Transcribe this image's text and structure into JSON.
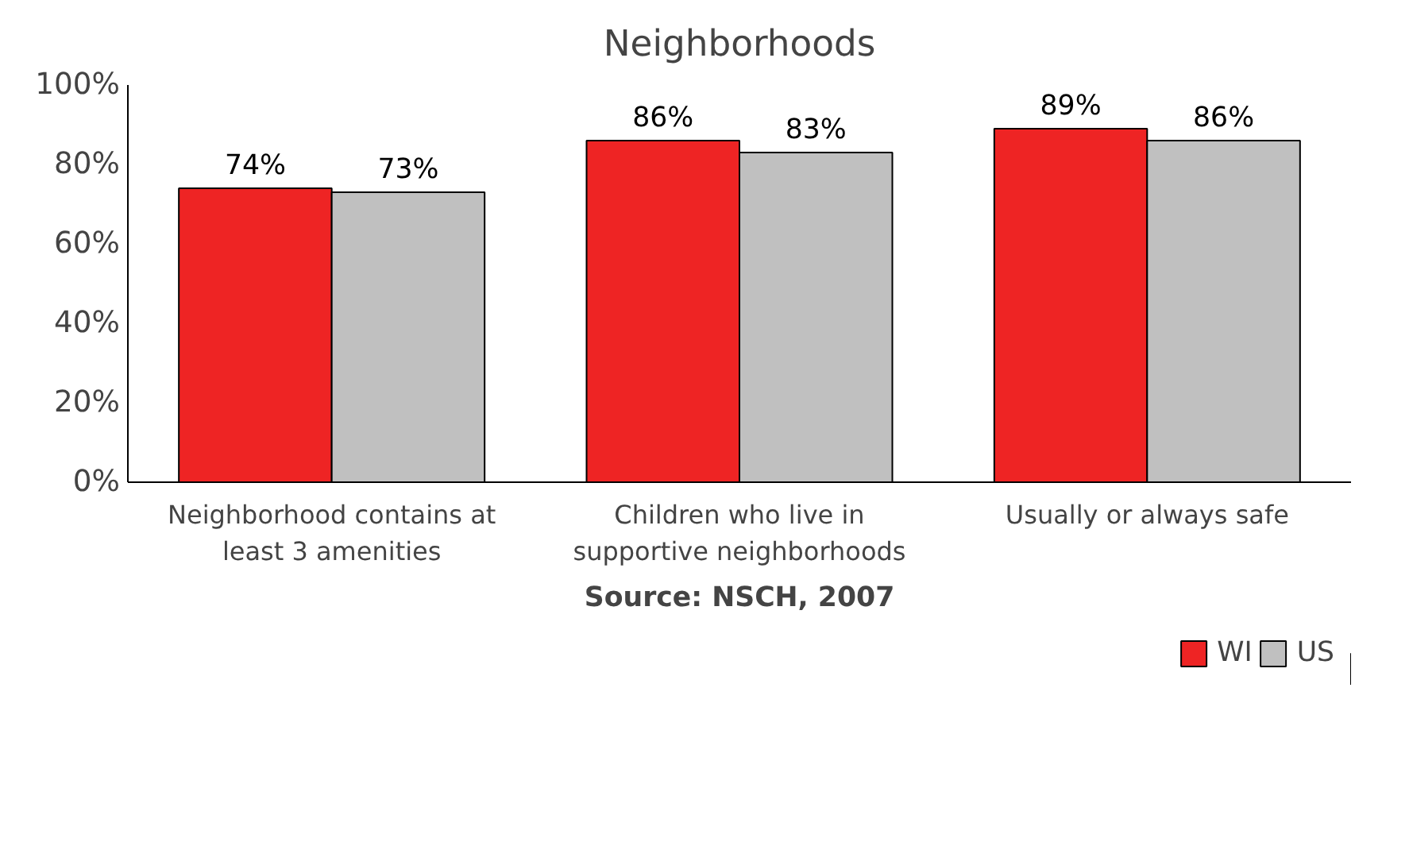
{
  "chart_data": {
    "type": "bar",
    "title": "Neighborhoods",
    "categories": [
      "Neighborhood contains at least 3 amenities",
      "Children who live in supportive neighborhoods",
      "Usually or always safe"
    ],
    "series": [
      {
        "name": "WI",
        "color": "#ee2424",
        "values": [
          74,
          86,
          89
        ],
        "value_labels": [
          "74%",
          "86%",
          "89%"
        ]
      },
      {
        "name": "US",
        "color": "#c0c0c0",
        "values": [
          73,
          83,
          86
        ],
        "value_labels": [
          "73%",
          "83%",
          "86%"
        ]
      }
    ],
    "ylim": [
      0,
      100
    ],
    "yticks": [
      {
        "value": 0,
        "label": "0%"
      },
      {
        "value": 20,
        "label": "20%"
      },
      {
        "value": 40,
        "label": "40%"
      },
      {
        "value": 60,
        "label": "60%"
      },
      {
        "value": 80,
        "label": "80%"
      },
      {
        "value": 100,
        "label": "100%"
      }
    ],
    "annotations": [
      "Source: NSCH, 2007"
    ],
    "grid": false,
    "legend": "bottom right"
  }
}
